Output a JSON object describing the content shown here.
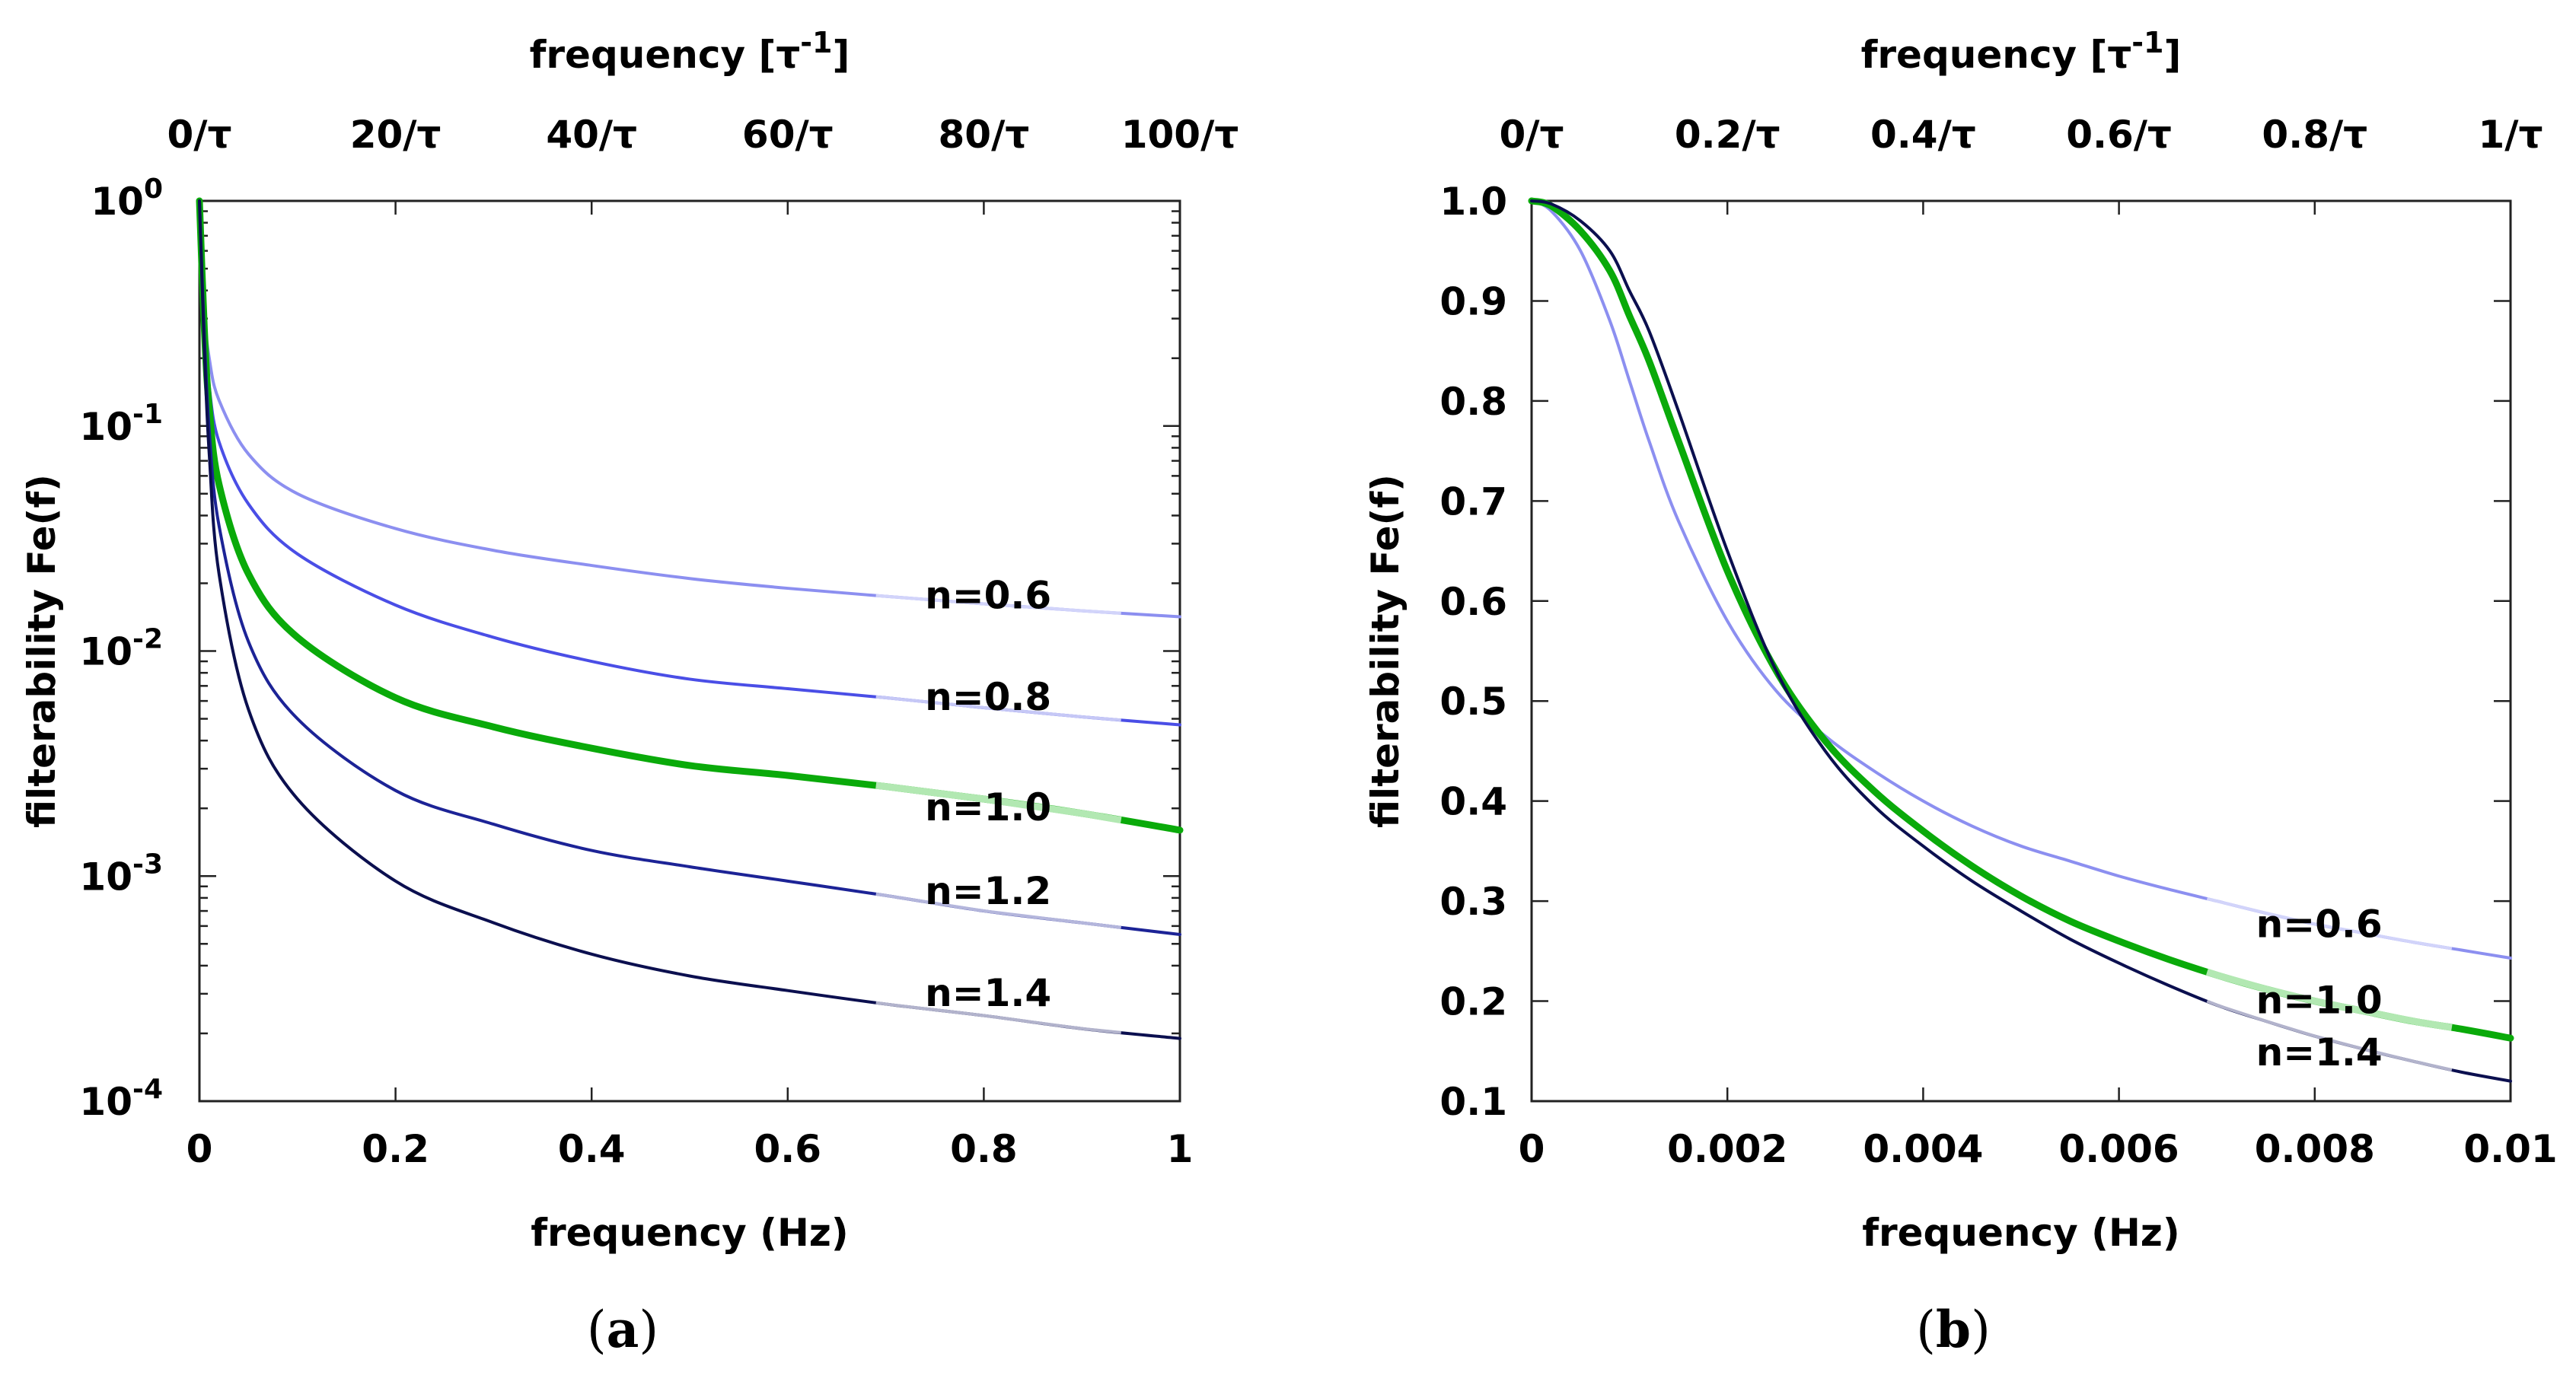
{
  "chart_data": [
    {
      "id": "a",
      "type": "line",
      "caption": "a",
      "xlabel": "frequency (Hz)",
      "ylabel": "filterability Fe(f)",
      "top_xlabel": "frequency [τ⁻¹]",
      "top_xlabel_base": "frequency [τ",
      "top_xlabel_sup": "-1",
      "top_xlabel_end": "]",
      "xlim": [
        0,
        1
      ],
      "ylim": [
        0.0001,
        1
      ],
      "yscale": "log",
      "x_ticks": [
        {
          "value": 0,
          "label": "0"
        },
        {
          "value": 0.2,
          "label": "0.2"
        },
        {
          "value": 0.4,
          "label": "0.4"
        },
        {
          "value": 0.6,
          "label": "0.6"
        },
        {
          "value": 0.8,
          "label": "0.8"
        },
        {
          "value": 1,
          "label": "1"
        }
      ],
      "top_ticks": [
        {
          "value": 0,
          "label": "0/τ"
        },
        {
          "value": 0.2,
          "label": "20/τ"
        },
        {
          "value": 0.4,
          "label": "40/τ"
        },
        {
          "value": 0.6,
          "label": "60/τ"
        },
        {
          "value": 0.8,
          "label": "80/τ"
        },
        {
          "value": 1,
          "label": "100/τ"
        }
      ],
      "y_ticks": [
        {
          "value": 1,
          "base": "10",
          "exp": "0"
        },
        {
          "value": 0.1,
          "base": "10",
          "exp": "-1"
        },
        {
          "value": 0.01,
          "base": "10",
          "exp": "-2"
        },
        {
          "value": 0.001,
          "base": "10",
          "exp": "-3"
        },
        {
          "value": 0.0001,
          "base": "10",
          "exp": "-4"
        }
      ],
      "series": [
        {
          "name": "n=0.6",
          "color": "#8c8ff0",
          "width": 4,
          "highlight": "#d2d4fa",
          "x": [
            0.0,
            0.005,
            0.01,
            0.02,
            0.05,
            0.1,
            0.2,
            0.3,
            0.4,
            0.5,
            0.6,
            0.7,
            0.8,
            0.9,
            1.0
          ],
          "y": [
            1.0,
            0.33,
            0.2,
            0.13,
            0.075,
            0.05,
            0.035,
            0.028,
            0.024,
            0.021,
            0.019,
            0.0175,
            0.0162,
            0.0151,
            0.0142
          ],
          "label_x": 0.74,
          "label_y": 0.0175
        },
        {
          "name": "n=0.8",
          "color": "#4a4ee6",
          "width": 4,
          "highlight": "#c6c8f6",
          "x": [
            0.0,
            0.005,
            0.01,
            0.02,
            0.05,
            0.1,
            0.2,
            0.3,
            0.4,
            0.5,
            0.6,
            0.7,
            0.8,
            0.9,
            1.0
          ],
          "y": [
            1.0,
            0.3,
            0.15,
            0.085,
            0.045,
            0.027,
            0.016,
            0.0115,
            0.009,
            0.0075,
            0.0068,
            0.0062,
            0.0056,
            0.0051,
            0.0047
          ],
          "label_x": 0.74,
          "label_y": 0.0062
        },
        {
          "name": "n=1.0",
          "color": "#0aaa0a",
          "width": 9,
          "highlight": "#b2e8b2",
          "x": [
            0.0,
            0.005,
            0.01,
            0.02,
            0.05,
            0.1,
            0.2,
            0.3,
            0.4,
            0.5,
            0.6,
            0.7,
            0.8,
            0.9,
            1.0
          ],
          "y": [
            1.0,
            0.27,
            0.12,
            0.055,
            0.022,
            0.0115,
            0.0062,
            0.0046,
            0.0037,
            0.0031,
            0.0028,
            0.0025,
            0.0022,
            0.0019,
            0.0016
          ],
          "label_x": 0.74,
          "label_y": 0.002
        },
        {
          "name": "n=1.2",
          "color": "#1c2396",
          "width": 4,
          "highlight": "#b4b6dc",
          "x": [
            0.0,
            0.005,
            0.01,
            0.02,
            0.05,
            0.1,
            0.2,
            0.3,
            0.4,
            0.5,
            0.6,
            0.7,
            0.8,
            0.9,
            1.0
          ],
          "y": [
            1.0,
            0.25,
            0.095,
            0.036,
            0.011,
            0.005,
            0.0024,
            0.0017,
            0.0013,
            0.0011,
            0.00095,
            0.00082,
            0.0007,
            0.00062,
            0.00055
          ],
          "label_x": 0.74,
          "label_y": 0.00085
        },
        {
          "name": "n=1.4",
          "color": "#0b0f4f",
          "width": 4,
          "highlight": "#b2b3cc",
          "x": [
            0.0,
            0.005,
            0.01,
            0.02,
            0.05,
            0.1,
            0.2,
            0.3,
            0.4,
            0.5,
            0.6,
            0.7,
            0.8,
            0.9,
            1.0
          ],
          "y": [
            1.0,
            0.22,
            0.075,
            0.022,
            0.0055,
            0.0022,
            0.00095,
            0.00062,
            0.00045,
            0.00036,
            0.00031,
            0.00027,
            0.00024,
            0.00021,
            0.00019
          ],
          "label_x": 0.74,
          "label_y": 0.0003
        }
      ]
    },
    {
      "id": "b",
      "type": "line",
      "caption": "b",
      "xlabel": "frequency (Hz)",
      "ylabel": "filterability Fe(f)",
      "top_xlabel_base": "frequency [τ",
      "top_xlabel_sup": "-1",
      "top_xlabel_end": "]",
      "xlim": [
        0,
        0.01
      ],
      "ylim": [
        0.1,
        1.0
      ],
      "yscale": "linear",
      "x_ticks": [
        {
          "value": 0,
          "label": "0"
        },
        {
          "value": 0.002,
          "label": "0.002"
        },
        {
          "value": 0.004,
          "label": "0.004"
        },
        {
          "value": 0.006,
          "label": "0.006"
        },
        {
          "value": 0.008,
          "label": "0.008"
        },
        {
          "value": 0.01,
          "label": "0.01"
        }
      ],
      "top_ticks": [
        {
          "value": 0,
          "label": "0/τ"
        },
        {
          "value": 0.002,
          "label": "0.2/τ"
        },
        {
          "value": 0.004,
          "label": "0.4/τ"
        },
        {
          "value": 0.006,
          "label": "0.6/τ"
        },
        {
          "value": 0.008,
          "label": "0.8/τ"
        },
        {
          "value": 0.01,
          "label": "1/τ"
        }
      ],
      "y_ticks": [
        {
          "value": 1.0,
          "label": "1.0"
        },
        {
          "value": 0.9,
          "label": "0.9"
        },
        {
          "value": 0.8,
          "label": "0.8"
        },
        {
          "value": 0.7,
          "label": "0.7"
        },
        {
          "value": 0.6,
          "label": "0.6"
        },
        {
          "value": 0.5,
          "label": "0.5"
        },
        {
          "value": 0.4,
          "label": "0.4"
        },
        {
          "value": 0.3,
          "label": "0.3"
        },
        {
          "value": 0.2,
          "label": "0.2"
        },
        {
          "value": 0.1,
          "label": "0.1"
        }
      ],
      "series": [
        {
          "name": "n=0.6",
          "color": "#8c8ff0",
          "width": 4,
          "highlight": "#d2d4fa",
          "x": [
            0.0,
            0.0002,
            0.0005,
            0.0008,
            0.001,
            0.0012,
            0.0015,
            0.002,
            0.0025,
            0.003,
            0.0035,
            0.004,
            0.0045,
            0.005,
            0.0055,
            0.006,
            0.0065,
            0.007,
            0.0075,
            0.008,
            0.0085,
            0.009,
            0.0095,
            0.01
          ],
          "y": [
            1.0,
            0.99,
            0.95,
            0.88,
            0.82,
            0.76,
            0.68,
            0.58,
            0.51,
            0.465,
            0.43,
            0.4,
            0.375,
            0.355,
            0.34,
            0.325,
            0.312,
            0.3,
            0.288,
            0.277,
            0.268,
            0.259,
            0.251,
            0.243
          ],
          "label_x": 0.0074,
          "label_y": 0.276
        },
        {
          "name": "n=1.0",
          "color": "#0aaa0a",
          "width": 9,
          "highlight": "#b2e8b2",
          "x": [
            0.0,
            0.0002,
            0.0005,
            0.0008,
            0.001,
            0.0012,
            0.0015,
            0.002,
            0.0025,
            0.003,
            0.0035,
            0.004,
            0.0045,
            0.005,
            0.0055,
            0.006,
            0.0065,
            0.007,
            0.0075,
            0.008,
            0.0085,
            0.009,
            0.0095,
            0.01
          ],
          "y": [
            1.0,
            0.995,
            0.97,
            0.93,
            0.885,
            0.84,
            0.76,
            0.63,
            0.53,
            0.46,
            0.41,
            0.37,
            0.335,
            0.305,
            0.28,
            0.26,
            0.242,
            0.226,
            0.212,
            0.2,
            0.19,
            0.18,
            0.172,
            0.163
          ],
          "label_x": 0.0074,
          "label_y": 0.2
        },
        {
          "name": "n=1.4",
          "color": "#0b0f4f",
          "width": 4,
          "highlight": "#b2b3cc",
          "x": [
            0.0,
            0.0002,
            0.0005,
            0.0008,
            0.001,
            0.0012,
            0.0015,
            0.002,
            0.0025,
            0.003,
            0.0035,
            0.004,
            0.0045,
            0.005,
            0.0055,
            0.006,
            0.0065,
            0.007,
            0.0075,
            0.008,
            0.0085,
            0.009,
            0.0095,
            0.01
          ],
          "y": [
            1.0,
            0.997,
            0.98,
            0.95,
            0.91,
            0.87,
            0.79,
            0.65,
            0.53,
            0.45,
            0.395,
            0.355,
            0.32,
            0.29,
            0.262,
            0.238,
            0.216,
            0.196,
            0.18,
            0.165,
            0.152,
            0.14,
            0.129,
            0.12
          ],
          "label_x": 0.0074,
          "label_y": 0.148
        }
      ]
    }
  ]
}
